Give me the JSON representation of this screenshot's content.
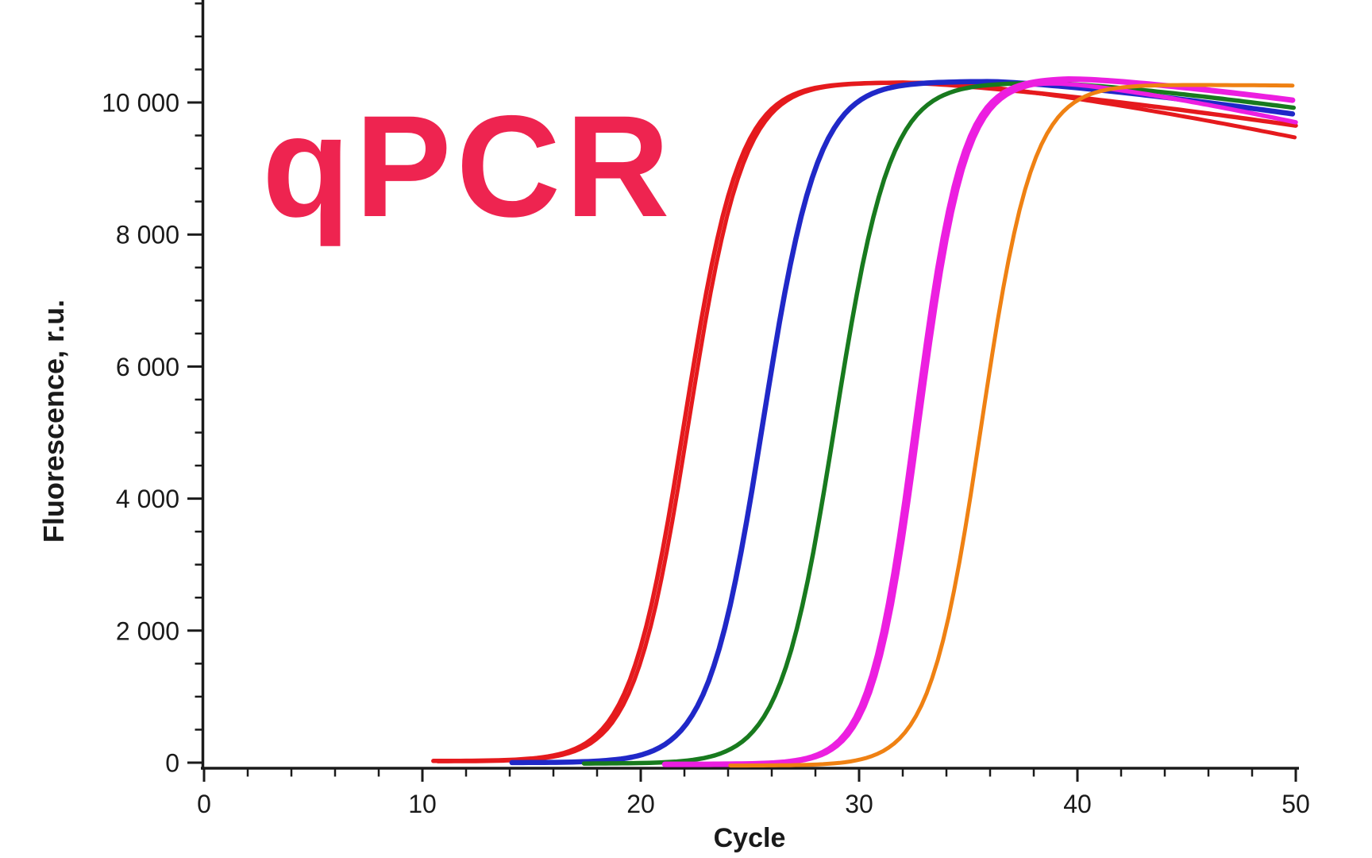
{
  "watermark": {
    "text": "qPCR",
    "color": "#EE2450"
  },
  "chart_data": {
    "type": "line",
    "title": "qPCR",
    "xlabel": "Cycle",
    "ylabel": "Fluorescence, r.u.",
    "xlim": [
      0,
      50
    ],
    "ylim": [
      0,
      11500
    ],
    "x_major_ticks": [
      0,
      10,
      20,
      30,
      40,
      50
    ],
    "x_minor_step": 2,
    "y_major_ticks": [
      0,
      2000,
      4000,
      6000,
      8000,
      10000
    ],
    "y_tick_labels": [
      "0",
      "2 000",
      "4 000",
      "6 000",
      "8 000",
      "10 000"
    ],
    "y_minor_step": 500,
    "grid": false,
    "legend": false,
    "axis_color": "#1a1a1a",
    "background": "#ffffff",
    "description": "qPCR amplification curves: five dye colors (red, blue, green, magenta, orange) with successively later threshold cycles; red and magenta appear as duplicate traces that diverge after plateau.",
    "sampled_cycles": [
      10,
      15,
      20,
      25,
      30,
      35,
      40,
      45,
      50
    ],
    "series": [
      {
        "name": "red-trace-b",
        "color": "#E51A1D",
        "stroke_width": 5,
        "baseline": 18,
        "ct_midpoint": 22.2,
        "slope_k": 0.8,
        "plateau": 10285,
        "decline_start": 33.5,
        "end_value": 9450,
        "sampled_fluorescence": [
          20,
          70,
          1600,
          9300,
          10290,
          10280,
          10140,
          9860,
          9470
        ]
      },
      {
        "name": "red-trace-a",
        "color": "#E51A1D",
        "stroke_width": 5.5,
        "baseline": 25,
        "ct_midpoint": 22.0,
        "slope_k": 0.8,
        "plateau": 10280,
        "decline_start": 32,
        "end_value": 9625,
        "sampled_fluorescence": [
          25,
          75,
          1730,
          9430,
          10300,
          10260,
          10100,
          9910,
          9650
        ]
      },
      {
        "name": "blue-trace",
        "color": "#2028C8",
        "stroke_width": 6.5,
        "baseline": 0,
        "ct_midpoint": 25.6,
        "slope_k": 0.8,
        "plateau": 10320,
        "decline_start": 36,
        "end_value": 9820,
        "sampled_fluorescence": [
          0,
          0,
          125,
          3950,
          10030,
          10320,
          10220,
          10040,
          9820
        ]
      },
      {
        "name": "green-trace",
        "color": "#187A1E",
        "stroke_width": 5.5,
        "baseline": -14,
        "ct_midpoint": 28.9,
        "slope_k": 0.8,
        "plateau": 10315,
        "decline_start": 38.5,
        "end_value": 9930,
        "sampled_fluorescence": [
          0,
          0,
          10,
          440,
          7280,
          10230,
          10280,
          10115,
          9915
        ]
      },
      {
        "name": "magenta-trace-b",
        "color": "#EC1FE0",
        "stroke_width": 5.5,
        "baseline": -30,
        "ct_midpoint": 32.75,
        "slope_k": 0.95,
        "plateau": 10370,
        "decline_start": 38,
        "end_value": 9730,
        "sampled_fluorescence": [
          0,
          0,
          5,
          15,
          820,
          9380,
          10280,
          10020,
          9700
        ]
      },
      {
        "name": "magenta-trace-a",
        "color": "#EC1FE0",
        "stroke_width": 7,
        "baseline": -26,
        "ct_midpoint": 32.6,
        "slope_k": 0.95,
        "plateau": 10395,
        "decline_start": 39.5,
        "end_value": 10055,
        "sampled_fluorescence": [
          0,
          0,
          5,
          12,
          810,
          9400,
          10360,
          10220,
          10030
        ]
      },
      {
        "name": "orange-trace",
        "color": "#EF8113",
        "stroke_width": 5,
        "baseline": -44,
        "ct_midpoint": 35.6,
        "slope_k": 0.85,
        "plateau": 10315,
        "decline_start": 43,
        "end_value": 10300,
        "sampled_fluorescence": [
          0,
          0,
          0,
          1,
          90,
          3860,
          10050,
          10270,
          10255
        ]
      }
    ]
  }
}
